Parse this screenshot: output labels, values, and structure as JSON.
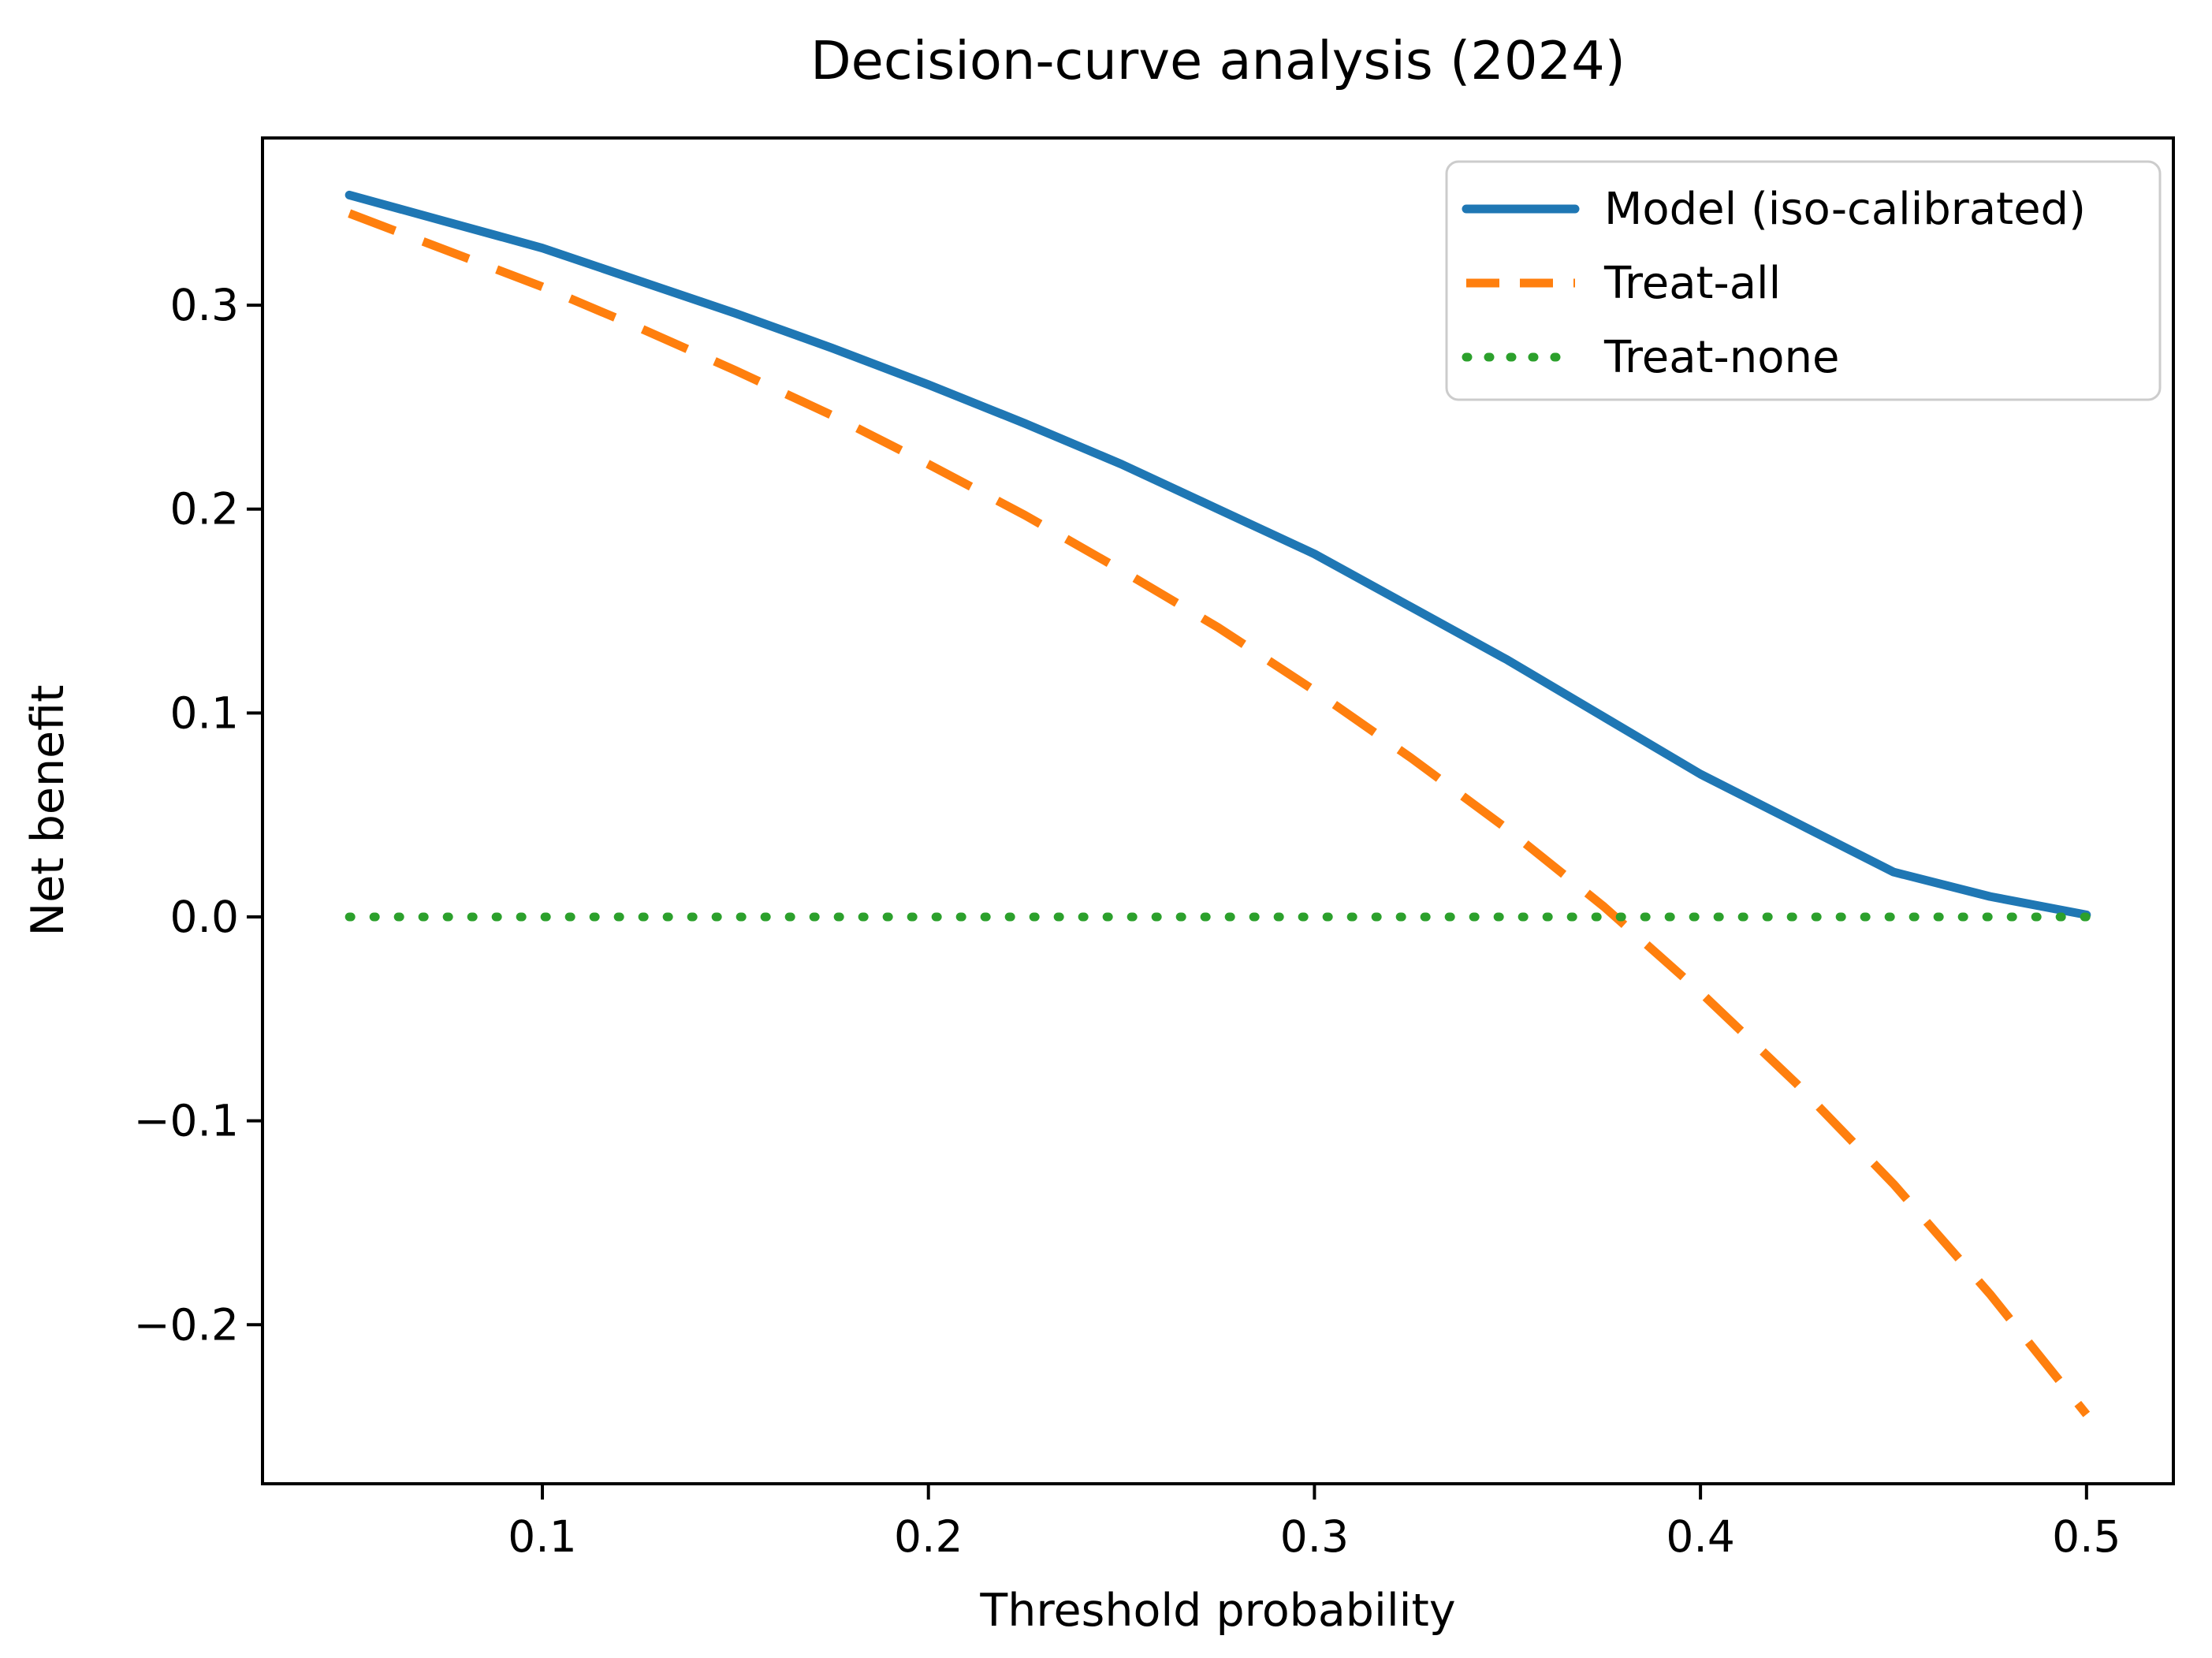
{
  "chart_data": {
    "type": "line",
    "title": "Decision-curve analysis (2024)",
    "xlabel": "Threshold probability",
    "ylabel": "Net benefit",
    "xlim": [
      0.0275,
      0.5225
    ],
    "ylim": [
      -0.278,
      0.382
    ],
    "x_ticks": [
      0.1,
      0.2,
      0.3,
      0.4,
      0.5
    ],
    "y_ticks": [
      0.3,
      0.2,
      0.1,
      0.0,
      -0.1,
      -0.2
    ],
    "grid": false,
    "legend_position": "upper right",
    "x": [
      0.05,
      0.075,
      0.1,
      0.125,
      0.15,
      0.175,
      0.2,
      0.225,
      0.25,
      0.275,
      0.3,
      0.325,
      0.35,
      0.375,
      0.4,
      0.425,
      0.45,
      0.475,
      0.5
    ],
    "series": [
      {
        "name": "Model (iso-calibrated)",
        "color": "#1f77b4",
        "style": "solid",
        "values": [
          0.354,
          0.341,
          0.328,
          0.312,
          0.296,
          0.279,
          0.261,
          0.242,
          0.222,
          0.2,
          0.178,
          0.152,
          0.126,
          0.098,
          0.07,
          0.046,
          0.022,
          0.01,
          0.001
        ]
      },
      {
        "name": "Treat-all",
        "color": "#ff7f0e",
        "style": "dashed",
        "values": [
          0.345,
          0.327,
          0.309,
          0.289,
          0.268,
          0.246,
          0.222,
          0.197,
          0.17,
          0.142,
          0.111,
          0.078,
          0.043,
          0.005,
          -0.037,
          -0.082,
          -0.131,
          -0.185,
          -0.244
        ]
      },
      {
        "name": "Treat-none",
        "color": "#2ca02c",
        "style": "dotted",
        "values": [
          0.0,
          0.0,
          0.0,
          0.0,
          0.0,
          0.0,
          0.0,
          0.0,
          0.0,
          0.0,
          0.0,
          0.0,
          0.0,
          0.0,
          0.0,
          0.0,
          0.0,
          0.0,
          0.0
        ]
      }
    ],
    "legend_border_color": "#cccccc",
    "axis_color": "#000000"
  }
}
